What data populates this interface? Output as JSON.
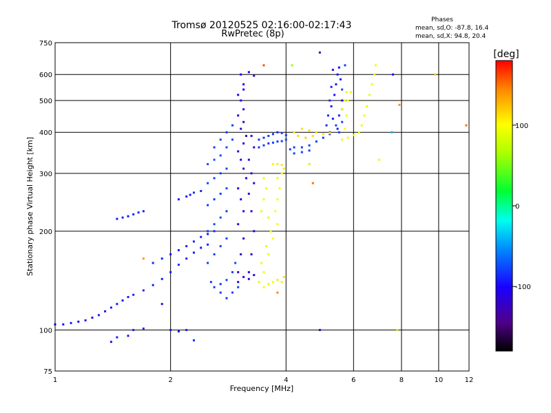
{
  "chart_data": {
    "type": "scatter",
    "title": "Tromsø 20120525 02:16:00-02:17:43",
    "subtitle": "RwPretec (8p)",
    "xlabel": "Frequency [MHz]",
    "ylabel": "Stationary phase Virtual Height [km]",
    "x_scale": "log",
    "y_scale": "log",
    "xlim": [
      1,
      12
    ],
    "ylim": [
      75,
      750
    ],
    "x_ticks": [
      1,
      2,
      4,
      6,
      8,
      10,
      12
    ],
    "y_ticks": [
      75,
      100,
      200,
      300,
      400,
      500,
      600,
      750
    ],
    "grid": true,
    "phases_header": "Phases",
    "stats": [
      "mean, sd,O:  -87.8,  16.4",
      "mean, sd,X:  94.8,  20.4"
    ],
    "colorbar": {
      "label": "[deg]",
      "range": [
        -180,
        180
      ],
      "ticks": [
        100,
        0,
        -100
      ]
    },
    "series": [
      {
        "points": [
          [
            1.0,
            104,
            -95
          ],
          [
            1.05,
            104,
            -98
          ],
          [
            1.1,
            105,
            -95
          ],
          [
            1.15,
            106,
            -100
          ],
          [
            1.2,
            107,
            -92
          ],
          [
            1.25,
            109,
            -96
          ],
          [
            1.3,
            111,
            -90
          ],
          [
            1.35,
            114,
            -95
          ],
          [
            1.4,
            117,
            -93
          ],
          [
            1.45,
            120,
            -90
          ],
          [
            1.5,
            123,
            -95
          ],
          [
            1.55,
            126,
            -92
          ],
          [
            1.6,
            128,
            -90
          ],
          [
            1.7,
            132,
            -88
          ],
          [
            1.8,
            137,
            -90
          ],
          [
            1.9,
            143,
            -92
          ],
          [
            2.0,
            150,
            -90
          ],
          [
            2.1,
            158,
            -88
          ],
          [
            2.2,
            165,
            -90
          ],
          [
            2.3,
            172,
            -92
          ],
          [
            2.4,
            178,
            -95
          ],
          [
            2.5,
            182,
            -90
          ],
          [
            1.8,
            160,
            -88
          ],
          [
            1.9,
            165,
            -90
          ],
          [
            2.0,
            170,
            -95
          ],
          [
            2.1,
            175,
            -92
          ],
          [
            2.2,
            180,
            -90
          ],
          [
            2.3,
            186,
            -88
          ],
          [
            2.4,
            192,
            -90
          ],
          [
            2.5,
            196,
            -92
          ],
          [
            2.6,
            200,
            -85
          ],
          [
            1.45,
            218,
            -92
          ],
          [
            1.5,
            220,
            -90
          ],
          [
            1.55,
            222,
            -95
          ],
          [
            1.6,
            225,
            -90
          ],
          [
            1.65,
            228,
            -88
          ],
          [
            1.7,
            230,
            -92
          ],
          [
            1.4,
            92,
            -95
          ],
          [
            1.45,
            95,
            -90
          ],
          [
            1.6,
            100,
            -92
          ],
          [
            1.7,
            101,
            -88
          ],
          [
            2.0,
            100,
            -90
          ],
          [
            2.1,
            99,
            -95
          ],
          [
            2.2,
            100,
            -92
          ],
          [
            2.1,
            250,
            -95
          ],
          [
            2.2,
            255,
            -90
          ],
          [
            2.25,
            258,
            -92
          ],
          [
            2.3,
            262,
            -85
          ],
          [
            2.4,
            265,
            -88
          ],
          [
            2.5,
            160,
            -80
          ],
          [
            2.5,
            200,
            -78
          ],
          [
            2.5,
            240,
            -82
          ],
          [
            2.5,
            280,
            -78
          ],
          [
            2.5,
            320,
            -75
          ],
          [
            2.6,
            170,
            -80
          ],
          [
            2.6,
            210,
            -76
          ],
          [
            2.6,
            250,
            -80
          ],
          [
            2.6,
            290,
            -78
          ],
          [
            2.6,
            330,
            -72
          ],
          [
            2.7,
            180,
            -78
          ],
          [
            2.7,
            220,
            -75
          ],
          [
            2.7,
            260,
            -78
          ],
          [
            2.7,
            300,
            -80
          ],
          [
            2.7,
            340,
            -75
          ],
          [
            2.8,
            190,
            -78
          ],
          [
            2.8,
            230,
            -80
          ],
          [
            2.8,
            270,
            -76
          ],
          [
            2.8,
            310,
            -78
          ],
          [
            2.8,
            360,
            -75
          ],
          [
            2.55,
            140,
            -82
          ],
          [
            2.6,
            135,
            -80
          ],
          [
            2.7,
            138,
            -82
          ],
          [
            2.8,
            142,
            -78
          ],
          [
            2.9,
            150,
            -80
          ],
          [
            2.95,
            160,
            -76
          ],
          [
            2.7,
            130,
            -80
          ],
          [
            2.8,
            125,
            -82
          ],
          [
            2.9,
            130,
            -78
          ],
          [
            3.0,
            135,
            -80
          ],
          [
            2.6,
            360,
            -80
          ],
          [
            2.7,
            380,
            -78
          ],
          [
            2.8,
            400,
            -82
          ],
          [
            2.9,
            380,
            -78
          ],
          [
            2.9,
            420,
            -80
          ],
          [
            3.0,
            150,
            -118
          ],
          [
            3.05,
            170,
            -125
          ],
          [
            3.1,
            190,
            -115
          ],
          [
            3.0,
            210,
            -120
          ],
          [
            3.1,
            230,
            -128
          ],
          [
            3.05,
            250,
            -115
          ],
          [
            3.0,
            270,
            -122
          ],
          [
            3.15,
            290,
            -118
          ],
          [
            3.1,
            310,
            -125
          ],
          [
            3.05,
            330,
            -112
          ],
          [
            3.0,
            350,
            -120
          ],
          [
            3.1,
            370,
            -118
          ],
          [
            3.15,
            390,
            -128
          ],
          [
            3.05,
            410,
            -115
          ],
          [
            3.1,
            430,
            -120
          ],
          [
            3.0,
            450,
            -110
          ],
          [
            3.1,
            470,
            -118
          ],
          [
            3.05,
            500,
            -108
          ],
          [
            3.0,
            520,
            -112
          ],
          [
            3.1,
            540,
            -105
          ],
          [
            3.2,
            150,
            -110
          ],
          [
            3.25,
            170,
            -115
          ],
          [
            3.3,
            200,
            -112
          ],
          [
            3.25,
            230,
            -118
          ],
          [
            3.2,
            260,
            -110
          ],
          [
            3.3,
            280,
            -115
          ],
          [
            3.25,
            300,
            -108
          ],
          [
            3.2,
            330,
            -112
          ],
          [
            3.3,
            360,
            -110
          ],
          [
            3.25,
            390,
            -105
          ],
          [
            3.05,
            600,
            -110
          ],
          [
            3.2,
            610,
            -112
          ],
          [
            3.1,
            560,
            -105
          ],
          [
            3.0,
            140,
            -105
          ],
          [
            3.1,
            145,
            -110
          ],
          [
            3.2,
            143,
            -108
          ],
          [
            3.3,
            147,
            -110
          ],
          [
            3.4,
            380,
            -85
          ],
          [
            3.5,
            385,
            -80
          ],
          [
            3.6,
            390,
            -82
          ],
          [
            3.7,
            395,
            -85
          ],
          [
            3.8,
            400,
            -88
          ],
          [
            3.9,
            398,
            -85
          ],
          [
            4.0,
            392,
            -82
          ],
          [
            3.4,
            360,
            -82
          ],
          [
            3.5,
            365,
            -80
          ],
          [
            3.6,
            370,
            -85
          ],
          [
            3.7,
            372,
            -80
          ],
          [
            3.8,
            375,
            -82
          ],
          [
            3.9,
            376,
            -80
          ],
          [
            4.0,
            380,
            -78
          ],
          [
            4.1,
            355,
            -80
          ],
          [
            4.2,
            360,
            -82
          ],
          [
            4.4,
            360,
            -80
          ],
          [
            4.6,
            365,
            -78
          ],
          [
            4.8,
            375,
            -80
          ],
          [
            5.0,
            385,
            -82
          ],
          [
            5.2,
            395,
            -80
          ],
          [
            4.2,
            345,
            -78
          ],
          [
            4.4,
            348,
            -80
          ],
          [
            4.6,
            352,
            -82
          ],
          [
            5.25,
            480,
            -92
          ],
          [
            5.3,
            440,
            -90
          ],
          [
            5.35,
            520,
            -95
          ],
          [
            5.4,
            560,
            -92
          ],
          [
            5.45,
            600,
            -95
          ],
          [
            5.5,
            630,
            -100
          ],
          [
            5.55,
            580,
            -92
          ],
          [
            5.6,
            500,
            -95
          ],
          [
            5.5,
            450,
            -90
          ],
          [
            5.45,
            410,
            -92
          ],
          [
            5.1,
            420,
            -85
          ],
          [
            5.15,
            450,
            -88
          ],
          [
            5.2,
            500,
            -85
          ],
          [
            5.25,
            550,
            -90
          ],
          [
            5.3,
            620,
            -95
          ],
          [
            5.2,
            400,
            -78
          ],
          [
            5.4,
            420,
            -76
          ],
          [
            5.5,
            400,
            -78
          ],
          [
            5.6,
            430,
            -76
          ],
          [
            5.6,
            470,
            -80
          ],
          [
            5.6,
            540,
            -76
          ],
          [
            5.7,
            640,
            -80
          ],
          [
            3.4,
            140,
            90
          ],
          [
            3.5,
            150,
            95
          ],
          [
            3.6,
            170,
            92
          ],
          [
            3.7,
            190,
            100
          ],
          [
            3.8,
            210,
            95
          ],
          [
            3.75,
            230,
            98
          ],
          [
            3.8,
            250,
            100
          ],
          [
            3.85,
            270,
            95
          ],
          [
            3.8,
            290,
            105
          ],
          [
            3.9,
            300,
            100
          ],
          [
            3.5,
            135,
            100
          ],
          [
            3.6,
            138,
            105
          ],
          [
            3.7,
            140,
            98
          ],
          [
            3.8,
            142,
            110
          ],
          [
            3.9,
            140,
            105
          ],
          [
            3.95,
            145,
            112
          ],
          [
            3.45,
            230,
            90
          ],
          [
            3.5,
            250,
            95
          ],
          [
            3.55,
            270,
            92
          ],
          [
            3.5,
            290,
            95
          ],
          [
            3.6,
            220,
            88
          ],
          [
            3.65,
            200,
            92
          ],
          [
            3.55,
            180,
            90
          ],
          [
            3.45,
            160,
            95
          ],
          [
            3.7,
            320,
            105
          ],
          [
            3.8,
            320,
            108
          ],
          [
            3.9,
            318,
            110
          ],
          [
            3.95,
            310,
            112
          ],
          [
            4.2,
            400,
            110
          ],
          [
            4.4,
            410,
            112
          ],
          [
            4.6,
            405,
            115
          ],
          [
            4.8,
            400,
            112
          ],
          [
            5.0,
            395,
            110
          ],
          [
            5.2,
            398,
            108
          ],
          [
            4.3,
            390,
            115
          ],
          [
            4.5,
            385,
            118
          ],
          [
            4.7,
            390,
            112
          ],
          [
            5.6,
            380,
            95
          ],
          [
            5.8,
            385,
            92
          ],
          [
            6.0,
            392,
            95
          ],
          [
            6.2,
            400,
            90
          ],
          [
            6.3,
            420,
            92
          ],
          [
            6.4,
            450,
            95
          ],
          [
            6.5,
            480,
            92
          ],
          [
            6.6,
            520,
            90
          ],
          [
            6.7,
            560,
            95
          ],
          [
            6.8,
            600,
            92
          ],
          [
            6.85,
            640,
            95
          ],
          [
            5.7,
            410,
            100
          ],
          [
            5.75,
            450,
            95
          ],
          [
            5.8,
            500,
            98
          ],
          [
            5.9,
            530,
            95
          ],
          [
            5.6,
            470,
            95
          ],
          [
            5.7,
            500,
            98
          ],
          [
            5.75,
            530,
            95
          ],
          [
            1.55,
            96,
            -95
          ],
          [
            1.7,
            165,
            140
          ],
          [
            1.9,
            120,
            -95
          ],
          [
            3.5,
            640,
            160
          ],
          [
            3.3,
            595,
            -120
          ],
          [
            4.15,
            640,
            60
          ],
          [
            4.9,
            700,
            -120
          ],
          [
            7.0,
            330,
            90
          ],
          [
            7.55,
            400,
            -40
          ],
          [
            7.6,
            600,
            -100
          ],
          [
            7.8,
            100,
            70
          ],
          [
            7.9,
            485,
            140
          ],
          [
            9.8,
            600,
            120
          ],
          [
            11.8,
            420,
            150
          ],
          [
            2.3,
            93,
            -85
          ],
          [
            4.6,
            320,
            80
          ],
          [
            4.7,
            280,
            150
          ],
          [
            4.9,
            100,
            -120
          ],
          [
            3.8,
            130,
            145
          ]
        ]
      }
    ]
  }
}
